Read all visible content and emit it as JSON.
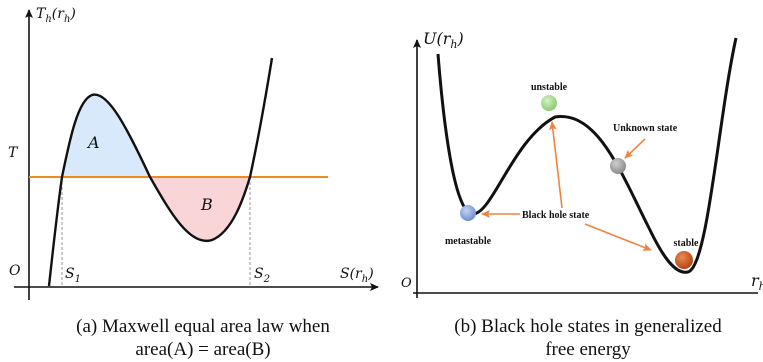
{
  "panel_a": {
    "y_axis_label": "T_h(r_h)",
    "x_axis_label": "S(r_h)",
    "origin_label": "O",
    "temperature_label": "T",
    "region_a_label": "A",
    "region_b_label": "B",
    "s1_label": "S_1",
    "s2_label": "S_2",
    "caption_line1": "(a) Maxwell equal area law when",
    "caption_line2": "area(A) = area(B)",
    "colors": {
      "curve": "#111111",
      "isotherm": "#f08c1e",
      "region_a": "#d7e9fb",
      "region_b": "#f9d5d8",
      "guide": "#9a9a9a"
    }
  },
  "panel_b": {
    "y_axis_label": "U(r_h)",
    "x_axis_label": "r_h",
    "origin_label": "O",
    "unstable_label": "unstable",
    "unknown_label": "Unknown state",
    "black_hole_label": "Black hole state",
    "metastable_label": "metastable",
    "stable_label": "stable",
    "caption_line1": "(b) Black hole states in generalized",
    "caption_line2": "free energy",
    "colors": {
      "curve": "#111111",
      "arrow": "#ef8440",
      "unstable_ball": "#a3d98f",
      "unknown_ball": "#9e9e9e",
      "metastable_ball": "#7f9fd8",
      "stable_ball": "#c9531a"
    }
  }
}
